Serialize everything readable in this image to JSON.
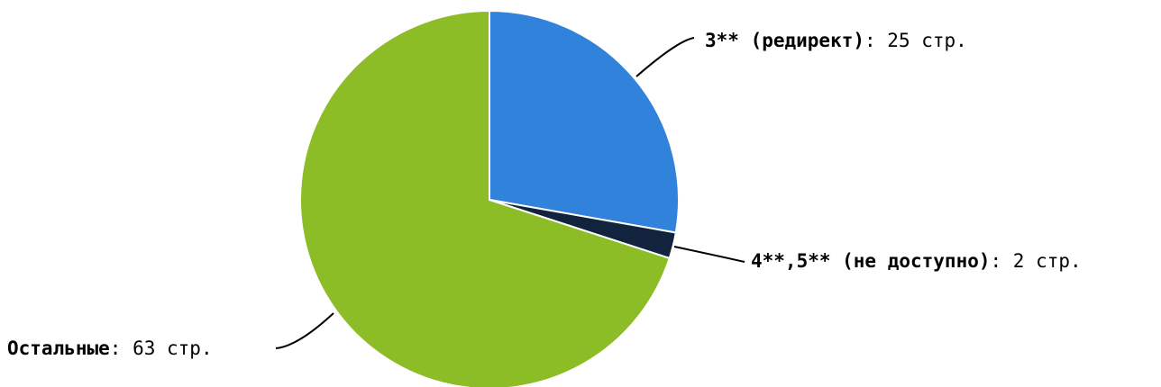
{
  "chart_data": {
    "type": "pie",
    "start_angle_deg": 0,
    "direction": "clockwise",
    "slice_border_color": "#ffffff",
    "leader_line_color": "#000000",
    "series": [
      {
        "name": "3** (редирект)",
        "value": 25,
        "value_text": ": 25 стр.",
        "color": "#3182db"
      },
      {
        "name": "4**,5** (не доступно)",
        "value": 2,
        "value_text": ": 2 стр.",
        "color": "#12233d"
      },
      {
        "name": "Остальные",
        "value": 63,
        "value_text": ": 63 стр.",
        "color": "#8cbd26"
      }
    ]
  }
}
